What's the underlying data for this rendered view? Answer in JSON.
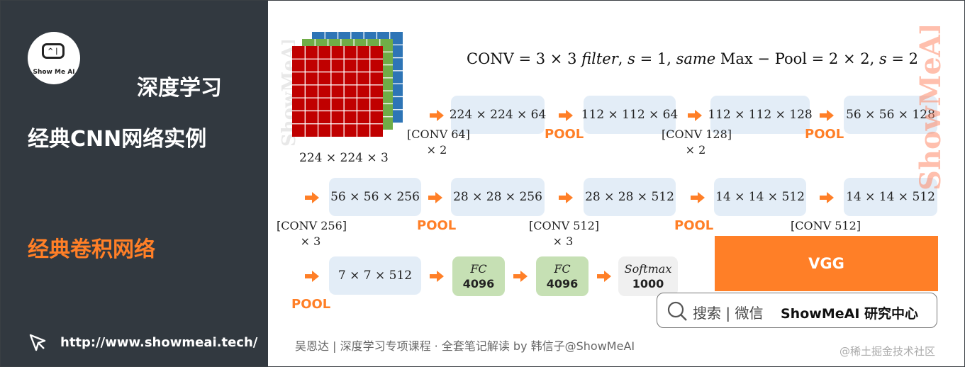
{
  "sidebar": {
    "logo_text": "Show Me AI",
    "title_line1": "深度学习",
    "title_line2": "经典CNN网络实例",
    "section_title": "经典卷积网络",
    "url": "http://www.showmeai.tech/"
  },
  "diagram": {
    "formula_conv": "CONV = 3 × 3 ",
    "formula_filter": "filter",
    "formula_mid": ", ",
    "formula_s1": "s",
    "formula_eq1": " = 1, ",
    "formula_same": "same",
    "formula_pool": " Max − Pool = 2 × 2, ",
    "formula_s2": "s",
    "formula_eq2": " = 2",
    "input_label": "224 × 224 × 3",
    "row1": {
      "box1": "224 × 224 × 64",
      "box2": "112 × 112 × 64",
      "box3": "112 × 112 × 128",
      "box4": "56 × 56 × 128",
      "conv1_a": "[CONV 64]",
      "conv1_b": "× 2",
      "pool1": "POOL",
      "conv2_a": "[CONV 128]",
      "conv2_b": "× 2",
      "pool2": "POOL"
    },
    "row2": {
      "box1": "56 × 56 × 256",
      "box2": "28 × 28 × 256",
      "box3": "28 × 28 × 512",
      "box4": "14 × 14 × 512",
      "box5": "14 × 14 × 512",
      "conv1_a": "[CONV 256]",
      "conv1_b": "× 3",
      "pool1": "POOL",
      "conv2_a": "[CONV 512]",
      "conv2_b": "× 3",
      "pool2": "POOL",
      "conv3_a": "[CONV 512]"
    },
    "row3": {
      "box1": "7 × 7 × 512",
      "pool": "POOL",
      "fc1_a": "FC",
      "fc1_b": "4096",
      "fc2_a": "FC",
      "fc2_b": "4096",
      "soft_a": "Softmax",
      "soft_b": "1000"
    },
    "vgg_label": "VGG"
  },
  "search": {
    "text": "搜索 | 微信",
    "brand": "ShowMeAI 研究中心"
  },
  "footer": {
    "credit": "吴恩达 | 深度学习专项课程 · 全套笔记解读  by 韩信子@ShowMeAI",
    "juejin": "@稀土掘金技术社区"
  },
  "watermark": "ShowMeAI",
  "colors": {
    "sidebar_bg": "#323940",
    "accent": "#ff7f27",
    "box_blue": "#e3edf7",
    "box_green": "#c6e0b4",
    "cube_red": "#c00000",
    "cube_green": "#70ad47",
    "cube_blue": "#2e75b6"
  }
}
